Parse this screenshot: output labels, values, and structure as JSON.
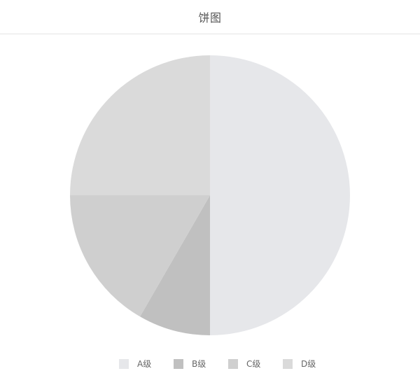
{
  "header": {
    "title": "饼图"
  },
  "chart_data": {
    "type": "pie",
    "title": "饼图",
    "categories": [
      "A级",
      "B级",
      "C级",
      "D级"
    ],
    "values": [
      50,
      8.33,
      16.67,
      25
    ],
    "colors": [
      "#e6e7ea",
      "#c0c0c0",
      "#cfcfcf",
      "#dadada"
    ],
    "start_angle_deg": 0,
    "direction": "clockwise",
    "legend_position": "bottom"
  }
}
